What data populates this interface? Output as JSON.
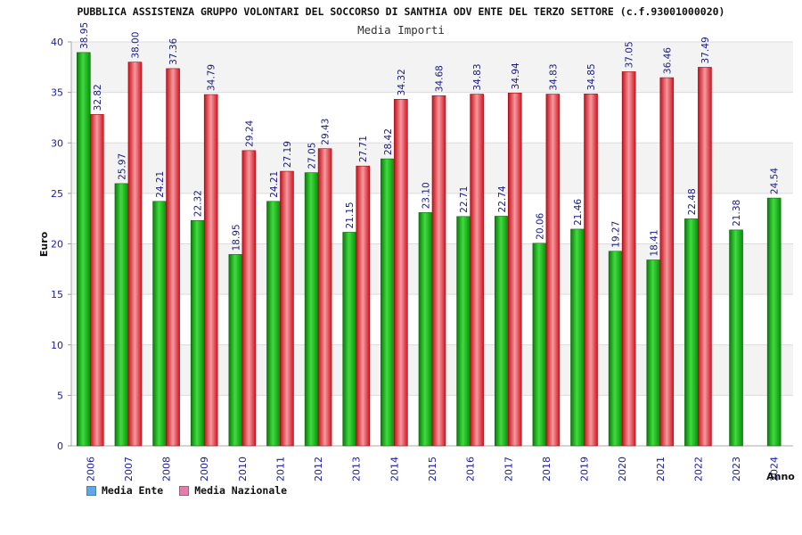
{
  "chart_data": {
    "type": "bar",
    "title": "PUBBLICA ASSISTENZA GRUPPO VOLONTARI DEL SOCCORSO DI SANTHIA ODV ENTE DEL TERZO SETTORE (c.f.93001000020)",
    "subtitle": "Media Importi",
    "xlabel": "Anno",
    "ylabel": "Euro",
    "ylim": [
      0,
      40
    ],
    "yticks": [
      0,
      5,
      10,
      15,
      20,
      25,
      30,
      35,
      40
    ],
    "categories": [
      "2006",
      "2007",
      "2008",
      "2009",
      "2010",
      "2011",
      "2012",
      "2013",
      "2014",
      "2015",
      "2016",
      "2017",
      "2018",
      "2019",
      "2020",
      "2021",
      "2022",
      "2023",
      "2024"
    ],
    "series": [
      {
        "name": "Media Ente",
        "values": [
          38.95,
          25.97,
          24.21,
          22.32,
          18.95,
          24.21,
          27.05,
          21.15,
          28.42,
          23.1,
          22.71,
          22.74,
          20.06,
          21.46,
          19.27,
          18.41,
          22.48,
          21.38,
          24.54
        ],
        "labels": [
          "38.95",
          "25.97",
          "24.21",
          "22.32",
          "18.95",
          "24.21",
          "27.05",
          "21.15",
          "28.42",
          "23.10",
          "22.71",
          "22.74",
          "20.06",
          "21.46",
          "19.27",
          "18.41",
          "22.48",
          "21.38",
          "24.54"
        ]
      },
      {
        "name": "Media Nazionale",
        "values": [
          32.82,
          38.0,
          37.36,
          34.79,
          29.24,
          27.19,
          29.43,
          27.71,
          34.32,
          34.68,
          34.83,
          34.94,
          34.83,
          34.85,
          37.05,
          36.46,
          37.49,
          null,
          null
        ],
        "labels": [
          "32.82",
          "38.00",
          "37.36",
          "34.79",
          "29.24",
          "27.19",
          "29.43",
          "27.71",
          "34.32",
          "34.68",
          "34.83",
          "34.94",
          "34.83",
          "34.85",
          "37.05",
          "36.46",
          "37.49",
          "",
          ""
        ]
      }
    ],
    "colors": {
      "ente": "#11b011",
      "nazionale": "#e5252e",
      "legend_ente": "#5fa8e8",
      "legend_nazionale": "#e87ca8",
      "axis_text": "#1a1aa0",
      "label_text": "#1a1a80"
    }
  },
  "legend": {
    "ente_label": "Media Ente",
    "nazionale_label": "Media Nazionale"
  }
}
